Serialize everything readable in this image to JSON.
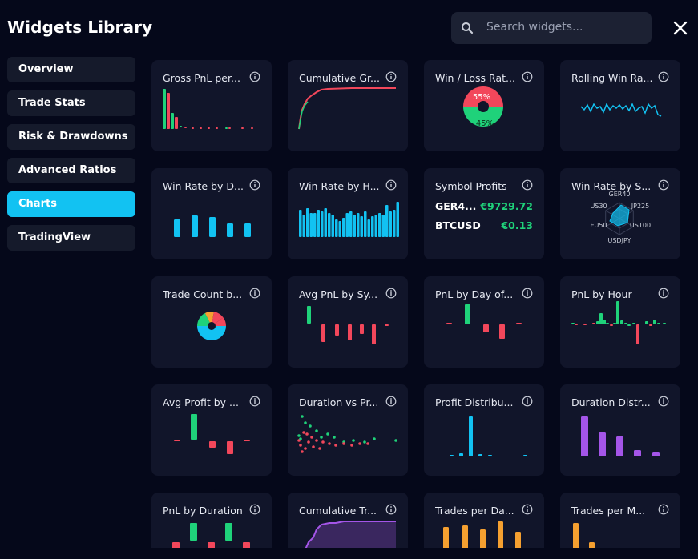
{
  "header": {
    "title": "Widgets Library",
    "search_placeholder": "Search widgets..."
  },
  "sidebar": {
    "items": [
      {
        "label": "Overview"
      },
      {
        "label": "Trade Stats"
      },
      {
        "label": "Risk & Drawdowns"
      },
      {
        "label": "Advanced Ratios"
      },
      {
        "label": "Charts",
        "active": true
      },
      {
        "label": "TradingView"
      }
    ]
  },
  "colors": {
    "accent": "#12c2f2",
    "green": "#1fd27a",
    "red": "#f2475b",
    "cyan": "#12c2f2",
    "purple": "#a455e8",
    "orange": "#f5a030"
  },
  "widgets": [
    {
      "title": "Gross PnL per..."
    },
    {
      "title": "Cumulative Gr..."
    },
    {
      "title": "Win / Loss Rat...",
      "loss_pct": "55%",
      "win_pct": "45%"
    },
    {
      "title": "Rolling Win Ra..."
    },
    {
      "title": "Win Rate by D..."
    },
    {
      "title": "Win Rate by H..."
    },
    {
      "title": "Symbol Profits",
      "rows": [
        {
          "symbol": "GER4...",
          "value": "€9729.72"
        },
        {
          "symbol": "BTCUSD",
          "value": "€0.13"
        }
      ]
    },
    {
      "title": "Win Rate by S...",
      "radar_labels": [
        "GER40",
        "JP225",
        "US100",
        "USDJPY",
        "EU50",
        "US30"
      ]
    },
    {
      "title": "Trade Count b..."
    },
    {
      "title": "Avg PnL by Sy..."
    },
    {
      "title": "PnL by Day of..."
    },
    {
      "title": "PnL by Hour"
    },
    {
      "title": "Avg Profit by ..."
    },
    {
      "title": "Duration vs Pr..."
    },
    {
      "title": "Profit Distribu..."
    },
    {
      "title": "Duration Distr..."
    },
    {
      "title": "PnL by Duration"
    },
    {
      "title": "Cumulative Tr..."
    },
    {
      "title": "Trades per Da..."
    },
    {
      "title": "Trades per M..."
    }
  ]
}
